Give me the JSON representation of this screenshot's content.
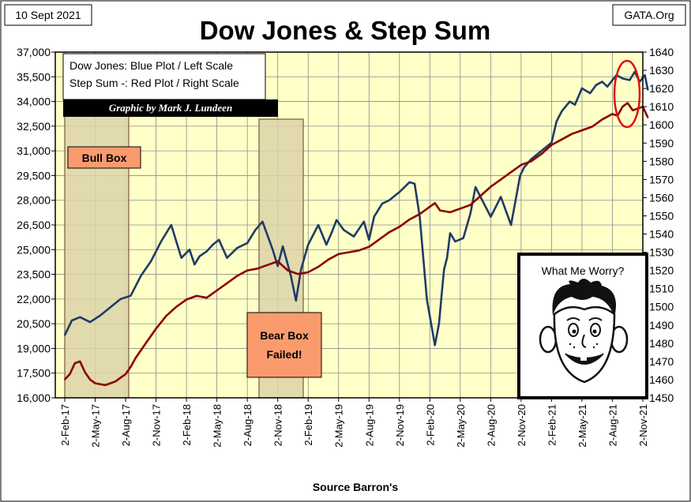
{
  "header": {
    "date": "10 Sept 2021",
    "title": "Dow Jones & Step Sum",
    "source_site": "GATA.Org"
  },
  "legend": {
    "line1": "Dow Jones: Blue Plot / Left Scale",
    "line2": "Step Sum -: Red Plot / Right Scale",
    "credit": "Graphic by Mark J. Lundeen"
  },
  "annotations": {
    "bull_box": "Bull Box",
    "bear_box_line1": "Bear Box",
    "bear_box_line2": "Failed!",
    "worry_caption": "What Me Worry?"
  },
  "colors": {
    "plot_bg": "#ffffc8",
    "dow": "#1f3b66",
    "step": "#8b0000",
    "box_fill": "#fa9b6e",
    "circle": "#e01010"
  },
  "footer": {
    "source": "Source Barron's"
  },
  "chart_data": {
    "type": "line",
    "title": "Dow Jones & Step Sum",
    "xlabel": "Source Barron's",
    "x_range_months": [
      0,
      57
    ],
    "x_tick_labels": [
      "2-Feb-17",
      "2-May-17",
      "2-Aug-17",
      "2-Nov-17",
      "2-Feb-18",
      "2-May-18",
      "2-Aug-18",
      "2-Nov-18",
      "2-Feb-19",
      "2-May-19",
      "2-Aug-19",
      "2-Nov-19",
      "2-Feb-20",
      "2-May-20",
      "2-Aug-20",
      "2-Nov-20",
      "2-Feb-21",
      "2-May-21",
      "2-Aug-21",
      "2-Nov-21"
    ],
    "left_axis": {
      "ylim": [
        16000,
        37000
      ],
      "ticks": [
        16000,
        17500,
        19000,
        20500,
        22000,
        23500,
        25000,
        26500,
        28000,
        29500,
        31000,
        32500,
        34000,
        35500,
        37000
      ],
      "tick_labels": [
        "16,000",
        "17,500",
        "19,000",
        "20,500",
        "22,000",
        "23,500",
        "25,000",
        "26,500",
        "28,000",
        "29,500",
        "31,000",
        "32,500",
        "34,000",
        "35,500",
        "37,000"
      ]
    },
    "right_axis": {
      "ylim": [
        1450,
        1640
      ],
      "ticks": [
        1450,
        1460,
        1470,
        1480,
        1490,
        1500,
        1510,
        1520,
        1530,
        1540,
        1550,
        1560,
        1570,
        1580,
        1590,
        1600,
        1610,
        1620,
        1630,
        1640
      ],
      "tick_labels": [
        "1450",
        "1460",
        "1470",
        "1480",
        "1490",
        "1500",
        "1510",
        "1520",
        "1530",
        "1540",
        "1550",
        "1560",
        "1570",
        "1580",
        "1590",
        "1600",
        "1610",
        "1620",
        "1630",
        "1640"
      ]
    },
    "series": [
      {
        "name": "Dow Jones",
        "axis": "left",
        "x": [
          0,
          0.7,
          1.5,
          2.5,
          3.5,
          4.5,
          5.5,
          6.5,
          7.5,
          8.5,
          9.5,
          10.5,
          11.5,
          12.3,
          12.8,
          13.3,
          14,
          14.6,
          15.2,
          16,
          17,
          18,
          18.8,
          19.5,
          20.5,
          21,
          21.5,
          22.3,
          22.8,
          23.3,
          24,
          24.5,
          25,
          25.8,
          26.3,
          26.8,
          27.5,
          28.5,
          29.5,
          30,
          30.5,
          31.3,
          32,
          33,
          34,
          34.5,
          35,
          35.7,
          36.5,
          36.9,
          37.2,
          37.4,
          37.7,
          38,
          38.5,
          39.3,
          40,
          40.5,
          41,
          42,
          43,
          44,
          44.6,
          44.9,
          45.3,
          46,
          47,
          48,
          48.5,
          49,
          49.8,
          50.3,
          51,
          51.8,
          52.4,
          53,
          53.5,
          54,
          54.4,
          55,
          55.7,
          56.2,
          56.7,
          57.2,
          57.5
        ],
        "values": [
          19800,
          20700,
          20900,
          20600,
          21000,
          21500,
          22000,
          22200,
          23400,
          24300,
          25500,
          26500,
          24500,
          25000,
          24100,
          24600,
          24900,
          25300,
          25600,
          24500,
          25100,
          25400,
          26200,
          26700,
          25000,
          24000,
          25200,
          23400,
          21900,
          23800,
          25300,
          25900,
          26500,
          25300,
          26000,
          26800,
          26200,
          25800,
          26700,
          25600,
          27000,
          27800,
          28000,
          28500,
          29100,
          29000,
          27000,
          22000,
          19200,
          20500,
          22500,
          23800,
          24500,
          26000,
          25500,
          25700,
          27200,
          28800,
          28200,
          27000,
          28200,
          26500,
          28500,
          29500,
          30000,
          30500,
          31000,
          31500,
          32800,
          33400,
          34000,
          33800,
          34800,
          34500,
          35000,
          35200,
          34900,
          35300,
          35600,
          35400,
          35300,
          35800,
          35200,
          35600,
          34700
        ]
      },
      {
        "name": "Step Sum",
        "axis": "right",
        "x": [
          0,
          0.5,
          1,
          1.5,
          2,
          2.5,
          3,
          4,
          5,
          5.5,
          6,
          6.5,
          7,
          8,
          9,
          10,
          11,
          12,
          13,
          14,
          15,
          16,
          17,
          18,
          19,
          20,
          21,
          22,
          23,
          24,
          25,
          26,
          27,
          28,
          29,
          30,
          31,
          32,
          33,
          34,
          35,
          36,
          36.5,
          37,
          38,
          39,
          40,
          41,
          42,
          43,
          44,
          45,
          46,
          47,
          48,
          49,
          50,
          51,
          52,
          53,
          54,
          54.5,
          55,
          55.5,
          56,
          57,
          57.5
        ],
        "values": [
          1460,
          1463,
          1469,
          1470,
          1464,
          1460,
          1458,
          1457,
          1459,
          1461,
          1463,
          1467,
          1472,
          1480,
          1488,
          1495,
          1500,
          1504,
          1506,
          1505,
          1509,
          1513,
          1517,
          1520,
          1521,
          1523,
          1525,
          1520,
          1518,
          1519,
          1522,
          1526,
          1529,
          1530,
          1531,
          1533,
          1537,
          1541,
          1544,
          1548,
          1551,
          1555,
          1557,
          1553,
          1552,
          1554,
          1556,
          1561,
          1566,
          1570,
          1574,
          1578,
          1580,
          1584,
          1589,
          1592,
          1595,
          1597,
          1599,
          1603,
          1606,
          1605,
          1610,
          1612,
          1608,
          1610,
          1604
        ]
      }
    ]
  }
}
